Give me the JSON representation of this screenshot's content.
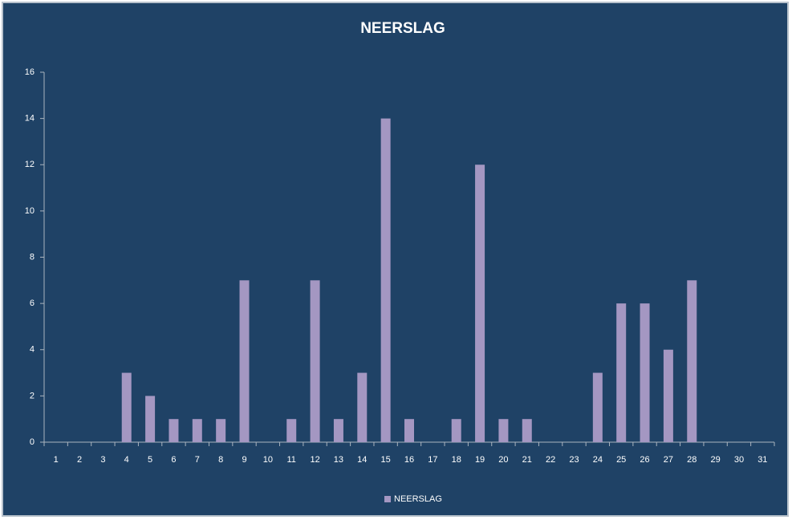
{
  "chart_data": {
    "type": "bar",
    "title": "NEERSLAG",
    "categories": [
      "1",
      "2",
      "3",
      "4",
      "5",
      "6",
      "7",
      "8",
      "9",
      "10",
      "11",
      "12",
      "13",
      "14",
      "15",
      "16",
      "17",
      "18",
      "19",
      "20",
      "21",
      "22",
      "23",
      "24",
      "25",
      "26",
      "27",
      "28",
      "29",
      "30",
      "31"
    ],
    "series": [
      {
        "name": "NEERSLAG",
        "color": "#a497c2",
        "values": [
          0,
          0,
          0,
          3,
          2,
          1,
          1,
          1,
          7,
          0,
          1,
          7,
          1,
          3,
          14,
          1,
          0,
          1,
          12,
          1,
          1,
          0,
          0,
          3,
          6,
          6,
          4,
          7,
          0,
          0,
          0
        ]
      }
    ],
    "ylim": [
      0,
      16
    ],
    "yticks": [
      0,
      2,
      4,
      6,
      8,
      10,
      12,
      14,
      16
    ],
    "grid": false,
    "legend": "bottom"
  }
}
